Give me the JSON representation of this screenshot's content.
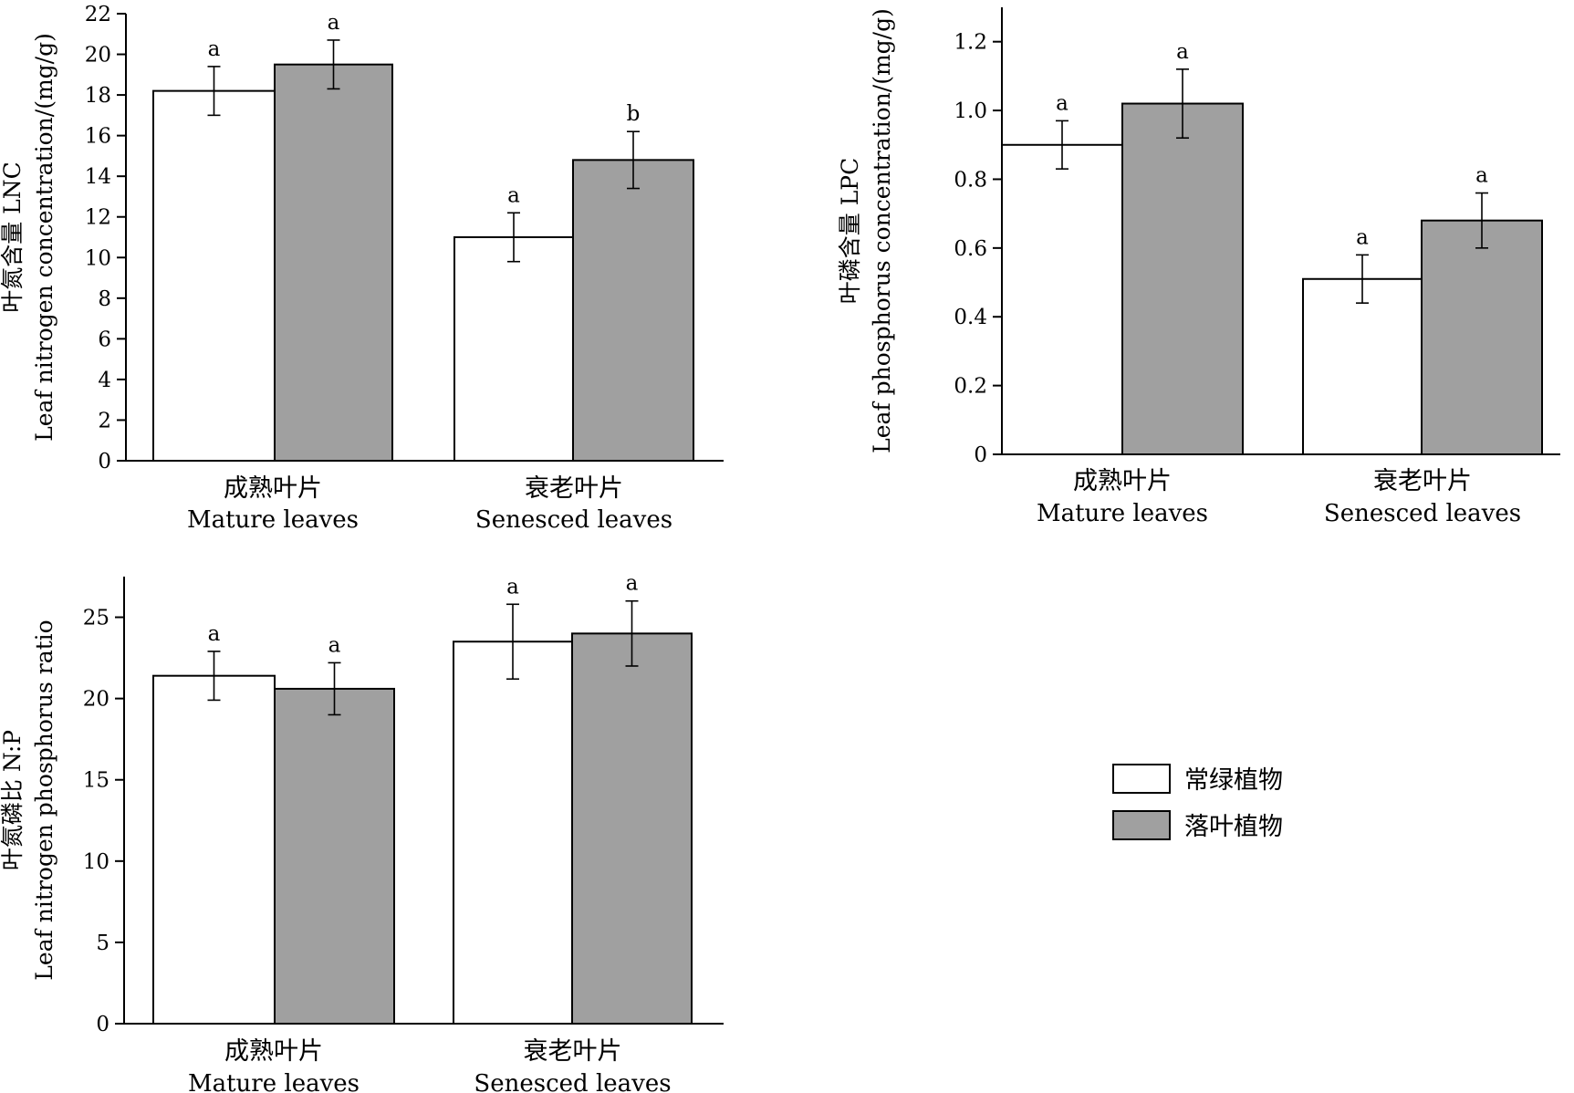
{
  "colors": {
    "evergreen": "#ffffff",
    "deciduous": "#a0a0a0",
    "axis": "#000000"
  },
  "legend": {
    "items": [
      {
        "label": "常绿植物",
        "color": "#ffffff"
      },
      {
        "label": "落叶植物",
        "color": "#a0a0a0"
      }
    ]
  },
  "chart_data": [
    {
      "type": "bar",
      "ylabel_zh": "叶氮含量 LNC",
      "ylabel_en": "Leaf nitrogen concentration/(mg/g)",
      "categories_zh": [
        "成熟叶片",
        "衰老叶片"
      ],
      "categories_en": [
        "Mature leaves",
        "Senesced leaves"
      ],
      "ylim": [
        0,
        22
      ],
      "yticks": [
        0,
        2,
        4,
        6,
        8,
        10,
        12,
        14,
        16,
        18,
        20,
        22
      ],
      "series": [
        {
          "name": "常绿植物",
          "values": [
            18.2,
            11.0
          ],
          "err": [
            1.2,
            1.2
          ],
          "sig": [
            "a",
            "a"
          ]
        },
        {
          "name": "落叶植物",
          "values": [
            19.5,
            14.8
          ],
          "err": [
            1.2,
            1.4
          ],
          "sig": [
            "a",
            "b"
          ]
        }
      ]
    },
    {
      "type": "bar",
      "ylabel_zh": "叶磷含量 LPC",
      "ylabel_en": "Leaf phosphorus concentration/(mg/g)",
      "categories_zh": [
        "成熟叶片",
        "衰老叶片"
      ],
      "categories_en": [
        "Mature leaves",
        "Senesced leaves"
      ],
      "ylim": [
        0,
        1.3
      ],
      "yticks": [
        "0",
        "0.2",
        "0.4",
        "0.6",
        "0.8",
        "1.0",
        "1.2"
      ],
      "series": [
        {
          "name": "常绿植物",
          "values": [
            0.9,
            0.51
          ],
          "err": [
            0.07,
            0.07
          ],
          "sig": [
            "a",
            "a"
          ]
        },
        {
          "name": "落叶植物",
          "values": [
            1.02,
            0.68
          ],
          "err": [
            0.1,
            0.08
          ],
          "sig": [
            "a",
            "a"
          ]
        }
      ]
    },
    {
      "type": "bar",
      "ylabel_zh": "叶氮磷比 N:P",
      "ylabel_en": "Leaf nitrogen phosphorus ratio",
      "categories_zh": [
        "成熟叶片",
        "衰老叶片"
      ],
      "categories_en": [
        "Mature leaves",
        "Senesced leaves"
      ],
      "ylim": [
        0,
        27.5
      ],
      "yticks": [
        0,
        5,
        10,
        15,
        20,
        25
      ],
      "series": [
        {
          "name": "常绿植物",
          "values": [
            21.4,
            23.5
          ],
          "err": [
            1.5,
            2.3
          ],
          "sig": [
            "a",
            "a"
          ]
        },
        {
          "name": "落叶植物",
          "values": [
            20.6,
            24.0
          ],
          "err": [
            1.6,
            2.0
          ],
          "sig": [
            "a",
            "a"
          ]
        }
      ]
    }
  ]
}
